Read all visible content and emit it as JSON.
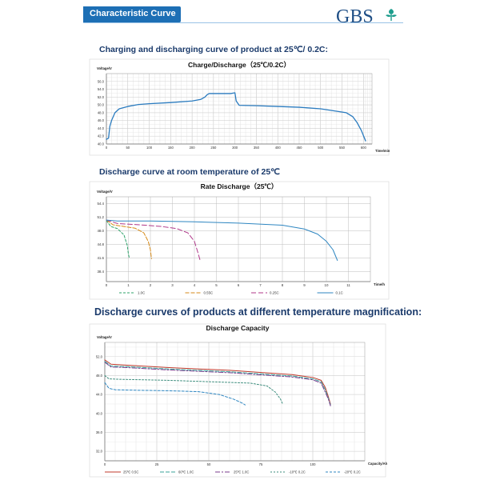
{
  "header": {
    "banner": "Characteristic Curve",
    "logo": "GBS",
    "logo_icon": "gbs-leaf-mark",
    "brand_color": "#1d6fb5"
  },
  "sections": {
    "charge_heading": "Charging and discharging curve of product at 25℃/ 0.2C:",
    "rate_heading": "Discharge curve at room temperature of 25℃",
    "temp_heading": "Discharge curves of products at different temperature magnification:"
  },
  "chart_data": [
    {
      "id": "charge",
      "type": "line",
      "title": "Charge/Discharge（25℃/0.2C）",
      "ylabel": "Voltage/V",
      "xlabel": "Time/min",
      "xlim": [
        0,
        620
      ],
      "ylim": [
        40,
        58
      ],
      "xticks": [
        0,
        50,
        100,
        150,
        200,
        250,
        300,
        350,
        400,
        450,
        500,
        550,
        600
      ],
      "yticks": [
        40.0,
        42.0,
        44.0,
        46.0,
        48.0,
        50.0,
        52.0,
        54.0,
        56.0
      ],
      "grid": true,
      "color": "#2a7bbf",
      "series": [
        {
          "x": [
            0,
            5,
            8,
            12,
            20,
            30,
            50,
            75,
            100,
            150,
            200,
            220,
            230,
            235,
            240,
            290,
            300,
            303,
            310,
            350,
            400,
            450,
            500,
            560,
            575,
            585,
            595,
            605
          ],
          "y": [
            41.2,
            41.5,
            44.5,
            46.0,
            48.0,
            49.0,
            49.6,
            50.1,
            50.3,
            50.6,
            51.0,
            51.4,
            52.0,
            52.6,
            52.9,
            52.9,
            53.1,
            51.0,
            49.9,
            49.8,
            49.6,
            49.4,
            49.0,
            48.0,
            47.0,
            45.5,
            43.5,
            40.8
          ]
        }
      ]
    },
    {
      "id": "rate",
      "type": "line",
      "title": "Rate Discharge（25℃）",
      "ylabel": "Voltage/V",
      "xlabel": "Time/h",
      "xlim": [
        0,
        12
      ],
      "ylim": [
        36,
        56
      ],
      "xticks": [
        0,
        1,
        2,
        3,
        4,
        5,
        6,
        7,
        8,
        9,
        10,
        11
      ],
      "yticks": [
        38.4,
        41.6,
        44.8,
        48.0,
        51.2,
        54.4
      ],
      "grid": true,
      "legend": "bottom",
      "series": [
        {
          "name": "1.0C",
          "color": "#2fa36b",
          "dash": "3,2",
          "x": [
            0,
            0.2,
            0.5,
            0.8,
            0.95,
            1.0,
            1.05
          ],
          "y": [
            50.4,
            49.0,
            48.5,
            47.0,
            44.5,
            42.5,
            41.4
          ]
        },
        {
          "name": "0.55C",
          "color": "#d68a18",
          "dash": "5,2",
          "x": [
            0,
            0.3,
            0.8,
            1.3,
            1.7,
            1.9,
            2.0,
            2.05
          ],
          "y": [
            50.5,
            49.4,
            49.0,
            48.6,
            47.5,
            45.5,
            43.5,
            41.4
          ]
        },
        {
          "name": "0.25C",
          "color": "#b0398a",
          "dash": "6,3",
          "x": [
            0,
            0.5,
            1.5,
            2.5,
            3.2,
            3.7,
            4.0,
            4.15,
            4.25
          ],
          "y": [
            50.5,
            49.7,
            49.4,
            49.0,
            48.5,
            47.5,
            45.5,
            43.0,
            41.2
          ]
        },
        {
          "name": "0.1C",
          "color": "#2e86c1",
          "dash": "",
          "x": [
            0,
            0.5,
            2,
            4,
            6,
            8,
            9,
            9.6,
            10.0,
            10.3,
            10.5
          ],
          "y": [
            50.5,
            50.3,
            50.3,
            50.1,
            49.8,
            49.3,
            48.4,
            47.2,
            45.5,
            43.5,
            41.0
          ]
        }
      ]
    },
    {
      "id": "temp",
      "type": "line",
      "title": "Discharge Capacity",
      "ylabel": "Voltage/V",
      "xlabel": "Capacity/Ah",
      "xlim": [
        0,
        125
      ],
      "ylim": [
        30,
        55
      ],
      "xticks": [
        0,
        25,
        50,
        75,
        100
      ],
      "yticks": [
        32.0,
        36.0,
        40.0,
        44.0,
        48.0,
        52.0
      ],
      "grid": true,
      "legend": "bottom",
      "series": [
        {
          "name": "25℃ 0.5C",
          "color": "#c0392b",
          "dash": "",
          "x": [
            0,
            3,
            10,
            30,
            60,
            90,
            100,
            104,
            106,
            107.5,
            108.5
          ],
          "y": [
            51.3,
            50.4,
            50.2,
            49.7,
            49.1,
            48.2,
            47.6,
            47.0,
            45.5,
            43.5,
            42.0
          ]
        },
        {
          "name": "60℃ 1.0C",
          "color": "#3aa39a",
          "dash": "5,2",
          "x": [
            0,
            3,
            10,
            30,
            60,
            90,
            100,
            104,
            106,
            107.5,
            108.5
          ],
          "y": [
            51.0,
            50.0,
            49.9,
            49.4,
            48.8,
            47.9,
            47.3,
            46.7,
            45.0,
            43.2,
            41.8
          ]
        },
        {
          "name": "25℃ 1.0C",
          "color": "#7a3e8e",
          "dash": "6,2,2,2",
          "x": [
            0,
            3,
            10,
            30,
            60,
            90,
            100,
            104,
            106,
            107.5,
            108.5
          ],
          "y": [
            50.8,
            49.8,
            49.7,
            49.2,
            48.6,
            47.7,
            47.1,
            46.4,
            44.5,
            43.0,
            41.6
          ]
        },
        {
          "name": "-10℃ 0.2C",
          "color": "#3e8e7e",
          "dash": "2,2",
          "x": [
            0,
            2,
            8,
            30,
            70,
            78,
            82,
            84.5,
            85.5
          ],
          "y": [
            48.0,
            47.3,
            47.2,
            47.0,
            46.4,
            45.8,
            44.5,
            43.0,
            42.0
          ]
        },
        {
          "name": "-20℃ 0.2C",
          "color": "#2e86c1",
          "dash": "3,2",
          "x": [
            0,
            2,
            5,
            15,
            30,
            45,
            55,
            62,
            66,
            67.5
          ],
          "y": [
            46.5,
            45.3,
            45.0,
            44.9,
            44.8,
            44.6,
            44.0,
            43.0,
            42.2,
            41.8
          ]
        }
      ]
    }
  ]
}
